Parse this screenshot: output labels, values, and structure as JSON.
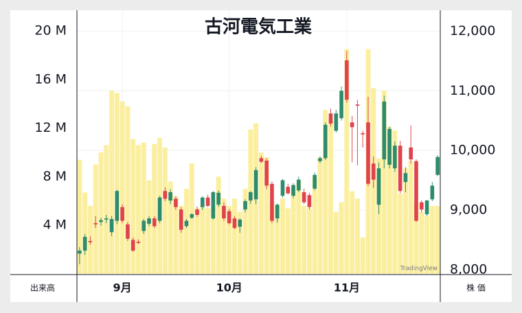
{
  "chart_data": {
    "type": "candlestick",
    "title": "古河電気工業",
    "volume_label": "出来高",
    "price_label": "株 価",
    "watermark": "TradingView",
    "categories": [
      null,
      null,
      null,
      null,
      null,
      null,
      null,
      null,
      "9月",
      null,
      null,
      null,
      null,
      null,
      null,
      null,
      null,
      null,
      null,
      null,
      null,
      null,
      null,
      null,
      null,
      null,
      null,
      null,
      "10月",
      null,
      null,
      null,
      null,
      null,
      null,
      null,
      null,
      null,
      null,
      null,
      null,
      null,
      null,
      null,
      null,
      null,
      null,
      null,
      null,
      null,
      "11月",
      null,
      null,
      null,
      null,
      null,
      null,
      null,
      null,
      null,
      null,
      null,
      null,
      null,
      null,
      null,
      null,
      null
    ],
    "open": [
      8270,
      8320,
      8480,
      8780,
      8800,
      8840,
      8630,
      8820,
      9050,
      8760,
      8500,
      8470,
      8650,
      8770,
      8860,
      8820,
      9320,
      9160,
      9190,
      9010,
      8730,
      8870,
      9010,
      9050,
      9210,
      8860,
      9090,
      9070,
      8980,
      8860,
      8720,
      9010,
      9160,
      9180,
      9870,
      9830,
      9440,
      8860,
      9240,
      9390,
      9240,
      9330,
      9300,
      9250,
      9360,
      9820,
      9870,
      10620,
      10330,
      10540,
      11510,
      10470,
      10770,
      10290,
      10470,
      9780,
      9090,
      9850,
      9760,
      9700,
      10080,
      9470,
      10050,
      9820,
      9130,
      8930,
      9180,
      9590
    ],
    "high": [
      8380,
      8600,
      8560,
      8900,
      8870,
      8920,
      8900,
      9340,
      9100,
      8800,
      8540,
      8510,
      8850,
      8900,
      8900,
      9240,
      9380,
      9350,
      9230,
      9050,
      8850,
      8950,
      9060,
      9230,
      9260,
      9320,
      9330,
      9130,
      9020,
      8900,
      8860,
      9180,
      9320,
      9720,
      9910,
      9870,
      9480,
      9110,
      9520,
      9440,
      9450,
      9560,
      9360,
      9290,
      9630,
      9900,
      10470,
      10700,
      10680,
      11070,
      11670,
      10580,
      10850,
      10330,
      10900,
      9900,
      9800,
      10920,
      10400,
      10150,
      10160,
      9720,
      10420,
      9850,
      9160,
      9170,
      9470,
      9920
    ],
    "low": [
      8090,
      8250,
      8420,
      8700,
      8740,
      8780,
      8560,
      8760,
      8780,
      8480,
      8300,
      8430,
      8600,
      8730,
      8700,
      8780,
      9150,
      9100,
      9000,
      8620,
      8700,
      8850,
      8890,
      9000,
      9050,
      8840,
      9050,
      8820,
      8760,
      8680,
      8620,
      8960,
      9100,
      9100,
      9790,
      9350,
      8780,
      8790,
      9210,
      9260,
      9200,
      9300,
      9100,
      9010,
      9330,
      9790,
      9840,
      10400,
      10300,
      10500,
      10800,
      9800,
      9750,
      10050,
      9400,
      9370,
      8930,
      9700,
      9700,
      9640,
      9280,
      9300,
      9780,
      8800,
      8960,
      8900,
      9150,
      9570
    ],
    "close": [
      8320,
      8550,
      8460,
      8760,
      8830,
      8860,
      8850,
      9320,
      8820,
      8520,
      8320,
      8450,
      8820,
      8860,
      8730,
      9210,
      9190,
      9300,
      9050,
      8670,
      8820,
      8930,
      8920,
      9210,
      9070,
      9300,
      9290,
      8860,
      8780,
      8700,
      8840,
      9150,
      9300,
      9670,
      9810,
      9410,
      8820,
      9090,
      9500,
      9280,
      9420,
      9510,
      9130,
      9050,
      9590,
      9870,
      10430,
      10450,
      10620,
      11000,
      10850,
      10390,
      10750,
      10270,
      9440,
      9510,
      9700,
      10820,
      10360,
      10080,
      9320,
      9620,
      9850,
      8820,
      9010,
      9160,
      9410,
      9890
    ],
    "volume": [
      9400000,
      6700000,
      5600000,
      9000000,
      10000000,
      10600000,
      15100000,
      14900000,
      14200000,
      13800000,
      11100000,
      10600000,
      10800000,
      7700000,
      10700000,
      11200000,
      10400000,
      7600000,
      6400000,
      5600000,
      7000000,
      9100000,
      5400000,
      5600000,
      5400000,
      5600000,
      8000000,
      6200000,
      5600000,
      6200000,
      5100000,
      7000000,
      11900000,
      12400000,
      10000000,
      9600000,
      5900000,
      5600000,
      6200000,
      5400000,
      7000000,
      7600000,
      5600000,
      5400000,
      7900000,
      9600000,
      13500000,
      12700000,
      5100000,
      5900000,
      18500000,
      6800000,
      6200000,
      3000000,
      18500000,
      15300000,
      9500000,
      15100000,
      12100000,
      11800000,
      6600000,
      8700000,
      9300000,
      5900000,
      5100000,
      4800000,
      5600000,
      5600000
    ],
    "ylim": [
      7930,
      12350
    ],
    "yticks": [
      {
        "value": 8000,
        "label": "8,000"
      },
      {
        "value": 9000,
        "label": "9,000"
      },
      {
        "value": 10000,
        "label": "10,000"
      },
      {
        "value": 11000,
        "label": "11,000"
      },
      {
        "value": 12000,
        "label": "12,000"
      }
    ],
    "y2lim": [
      0,
      21700000
    ],
    "y2ticks": [
      {
        "value": 4000000,
        "label": "4 M"
      },
      {
        "value": 8000000,
        "label": "8 M"
      },
      {
        "value": 12000000,
        "label": "12 M"
      },
      {
        "value": 16000000,
        "label": "16 M"
      },
      {
        "value": 20000000,
        "label": "20 M"
      }
    ],
    "up_color": "#2e8b6c",
    "down_color": "#e0434b",
    "volume_color": "#fbef9f",
    "grid": true
  }
}
